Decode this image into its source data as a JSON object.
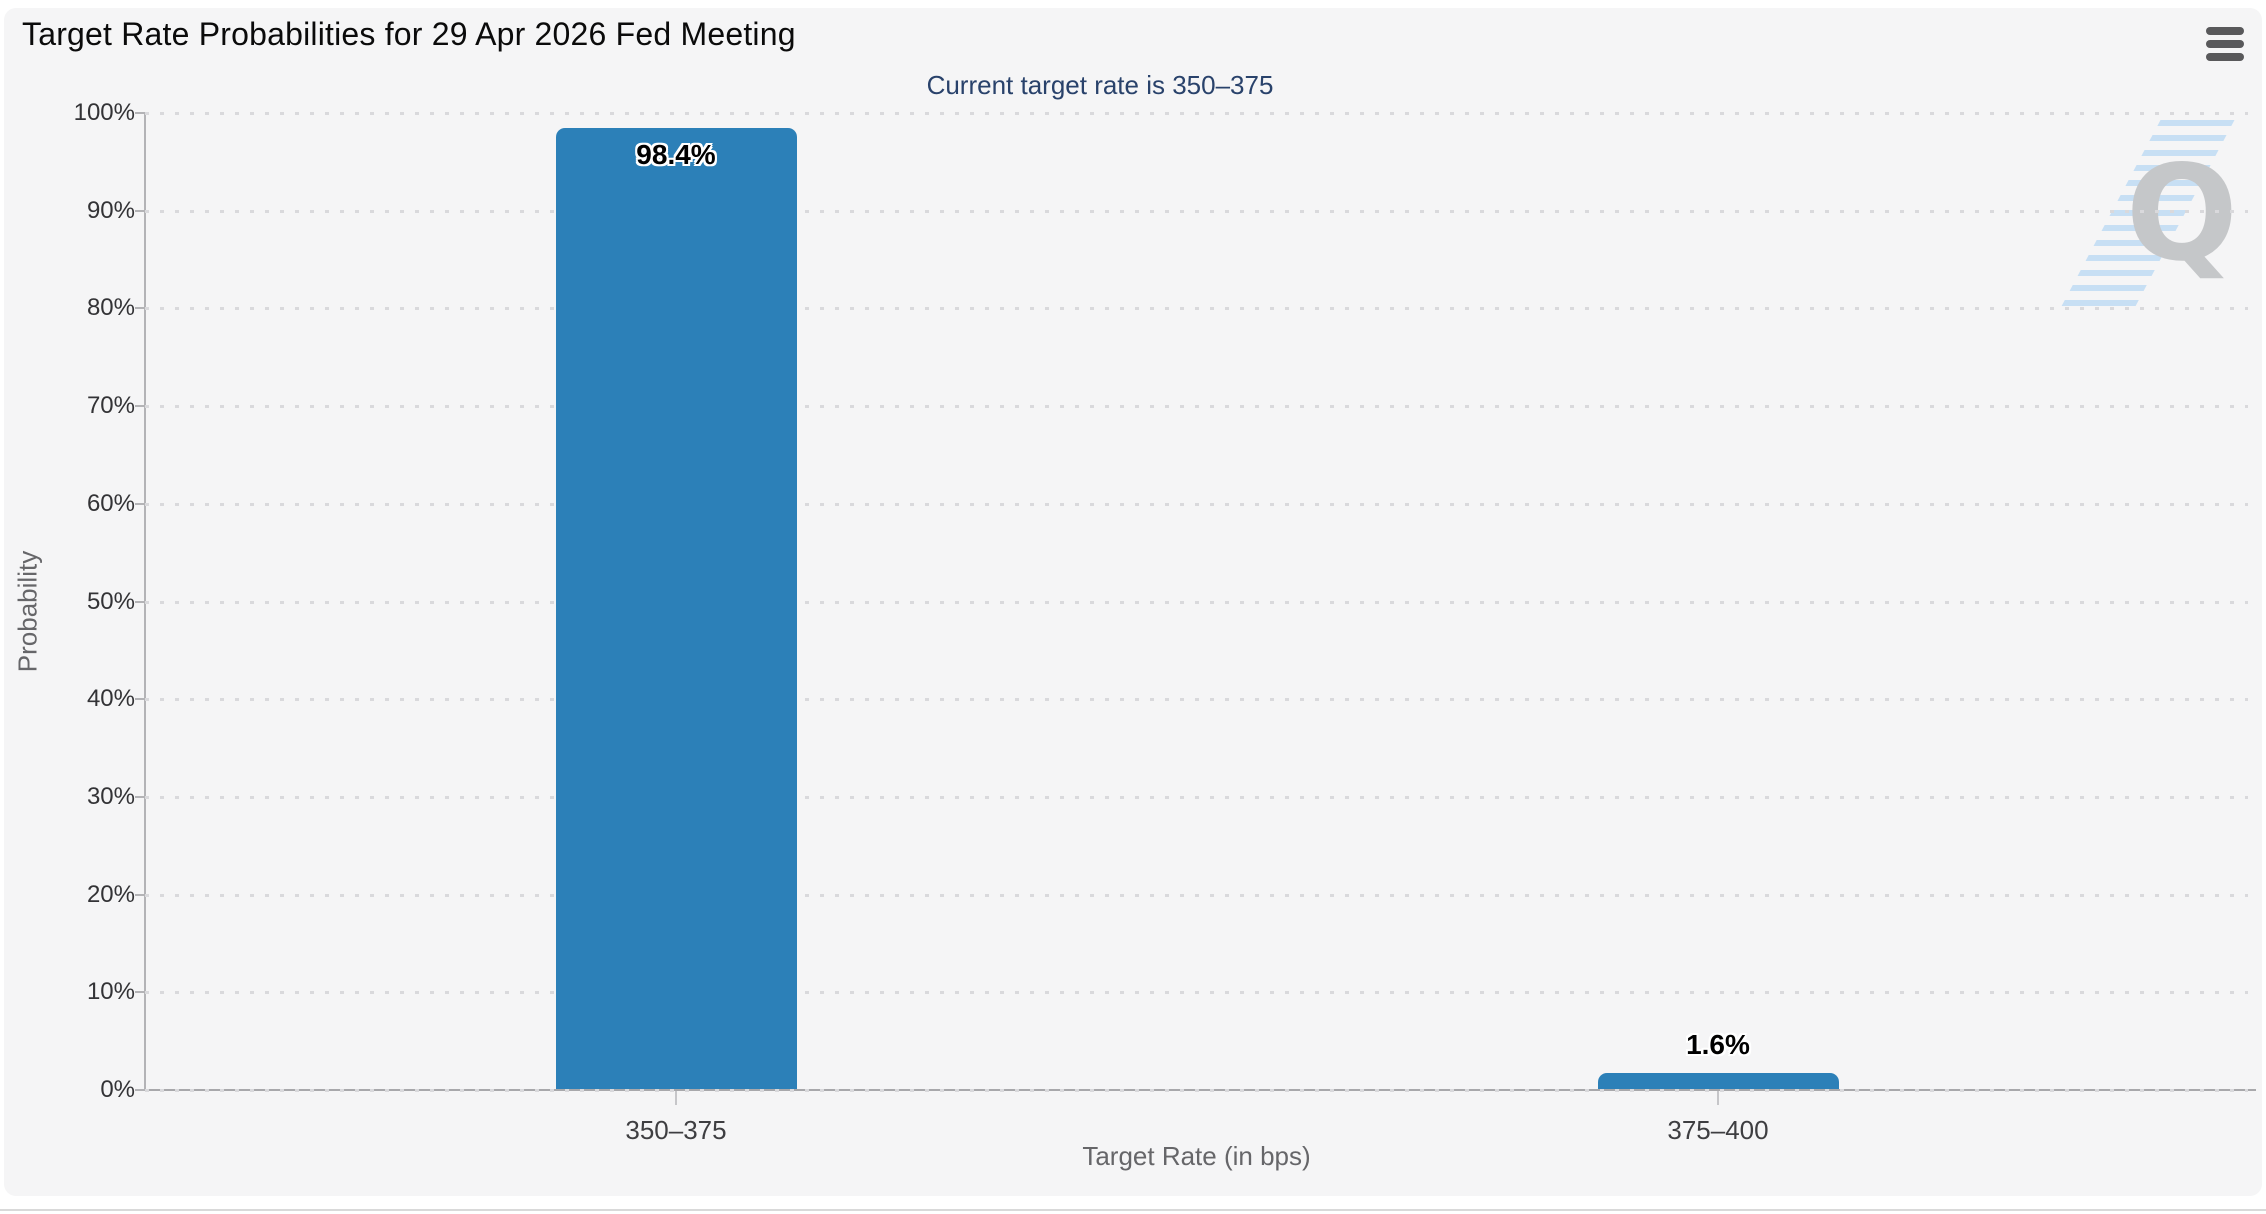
{
  "header": {
    "title": "Target Rate Probabilities for 29 Apr 2026 Fed Meeting",
    "menu_icon": "hamburger-menu"
  },
  "watermark_letter": "Q",
  "chart_data": {
    "type": "bar",
    "title": "Target Rate Probabilities for 29 Apr 2026 Fed Meeting",
    "subtitle": "Current target rate is 350–375",
    "categories": [
      "350–375",
      "375–400"
    ],
    "values": [
      98.4,
      1.6
    ],
    "bar_labels": [
      "98.4%",
      "1.6%"
    ],
    "xlabel": "Target Rate (in bps)",
    "ylabel": "Probability",
    "ylim": [
      0,
      100
    ],
    "ytick_step": 10,
    "ytick_labels": [
      "100%",
      "90%",
      "80%",
      "70%",
      "60%",
      "50%",
      "40%",
      "30%",
      "20%",
      "10%",
      "0%"
    ],
    "grid": "dotted horizontal",
    "legend_position": "none",
    "bar_color": "#2c80b8"
  }
}
